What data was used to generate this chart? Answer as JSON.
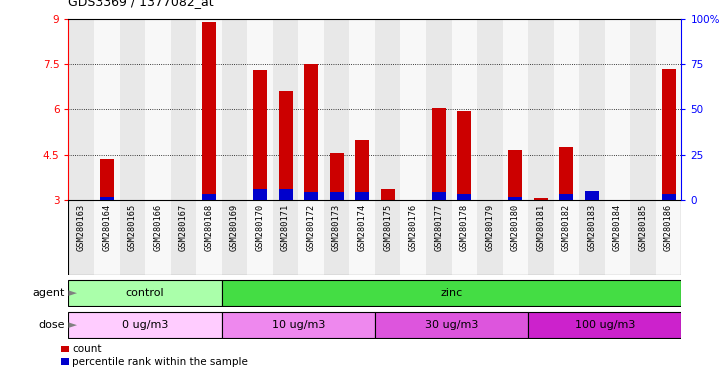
{
  "title": "GDS3369 / 1377082_at",
  "categories": [
    "GSM280163",
    "GSM280164",
    "GSM280165",
    "GSM280166",
    "GSM280167",
    "GSM280168",
    "GSM280169",
    "GSM280170",
    "GSM280171",
    "GSM280172",
    "GSM280173",
    "GSM280174",
    "GSM280175",
    "GSM280176",
    "GSM280177",
    "GSM280178",
    "GSM280179",
    "GSM280180",
    "GSM280181",
    "GSM280182",
    "GSM280183",
    "GSM280184",
    "GSM280185",
    "GSM280186"
  ],
  "count_values": [
    3.0,
    4.35,
    3.0,
    3.0,
    3.0,
    8.9,
    3.0,
    7.3,
    6.6,
    7.5,
    4.55,
    5.0,
    3.35,
    3.0,
    6.05,
    5.95,
    3.0,
    4.65,
    3.05,
    4.75,
    3.1,
    3.0,
    3.0,
    7.35
  ],
  "percentile_values": [
    3.0,
    3.1,
    3.0,
    3.0,
    3.0,
    3.2,
    3.0,
    3.35,
    3.35,
    3.25,
    3.25,
    3.25,
    3.0,
    3.0,
    3.25,
    3.2,
    3.0,
    3.1,
    3.0,
    3.2,
    3.3,
    3.0,
    3.0,
    3.2
  ],
  "ylim_left": [
    3,
    9
  ],
  "ylim_right": [
    0,
    100
  ],
  "yticks_left": [
    3,
    4.5,
    6,
    7.5,
    9
  ],
  "yticks_right": [
    0,
    25,
    50,
    75,
    100
  ],
  "bar_color": "#cc0000",
  "percentile_color": "#0000cc",
  "bar_width": 0.55,
  "agent_groups": [
    {
      "label": "control",
      "start": 0,
      "end": 5,
      "color": "#aaffaa"
    },
    {
      "label": "zinc",
      "start": 6,
      "end": 23,
      "color": "#44dd44"
    }
  ],
  "dose_groups": [
    {
      "label": "0 ug/m3",
      "start": 0,
      "end": 5,
      "color": "#ffccff"
    },
    {
      "label": "10 ug/m3",
      "start": 6,
      "end": 11,
      "color": "#ee88ee"
    },
    {
      "label": "30 ug/m3",
      "start": 12,
      "end": 17,
      "color": "#dd55dd"
    },
    {
      "label": "100 ug/m3",
      "start": 18,
      "end": 23,
      "color": "#cc22cc"
    }
  ],
  "legend_items": [
    {
      "label": "count",
      "color": "#cc0000"
    },
    {
      "label": "percentile rank within the sample",
      "color": "#0000cc"
    }
  ],
  "grid_yticks": [
    4.5,
    6.0,
    7.5
  ],
  "background_color": "#ffffff",
  "plot_bg_color": "#ffffff",
  "column_bg_even": "#e8e8e8",
  "column_bg_odd": "#f8f8f8"
}
